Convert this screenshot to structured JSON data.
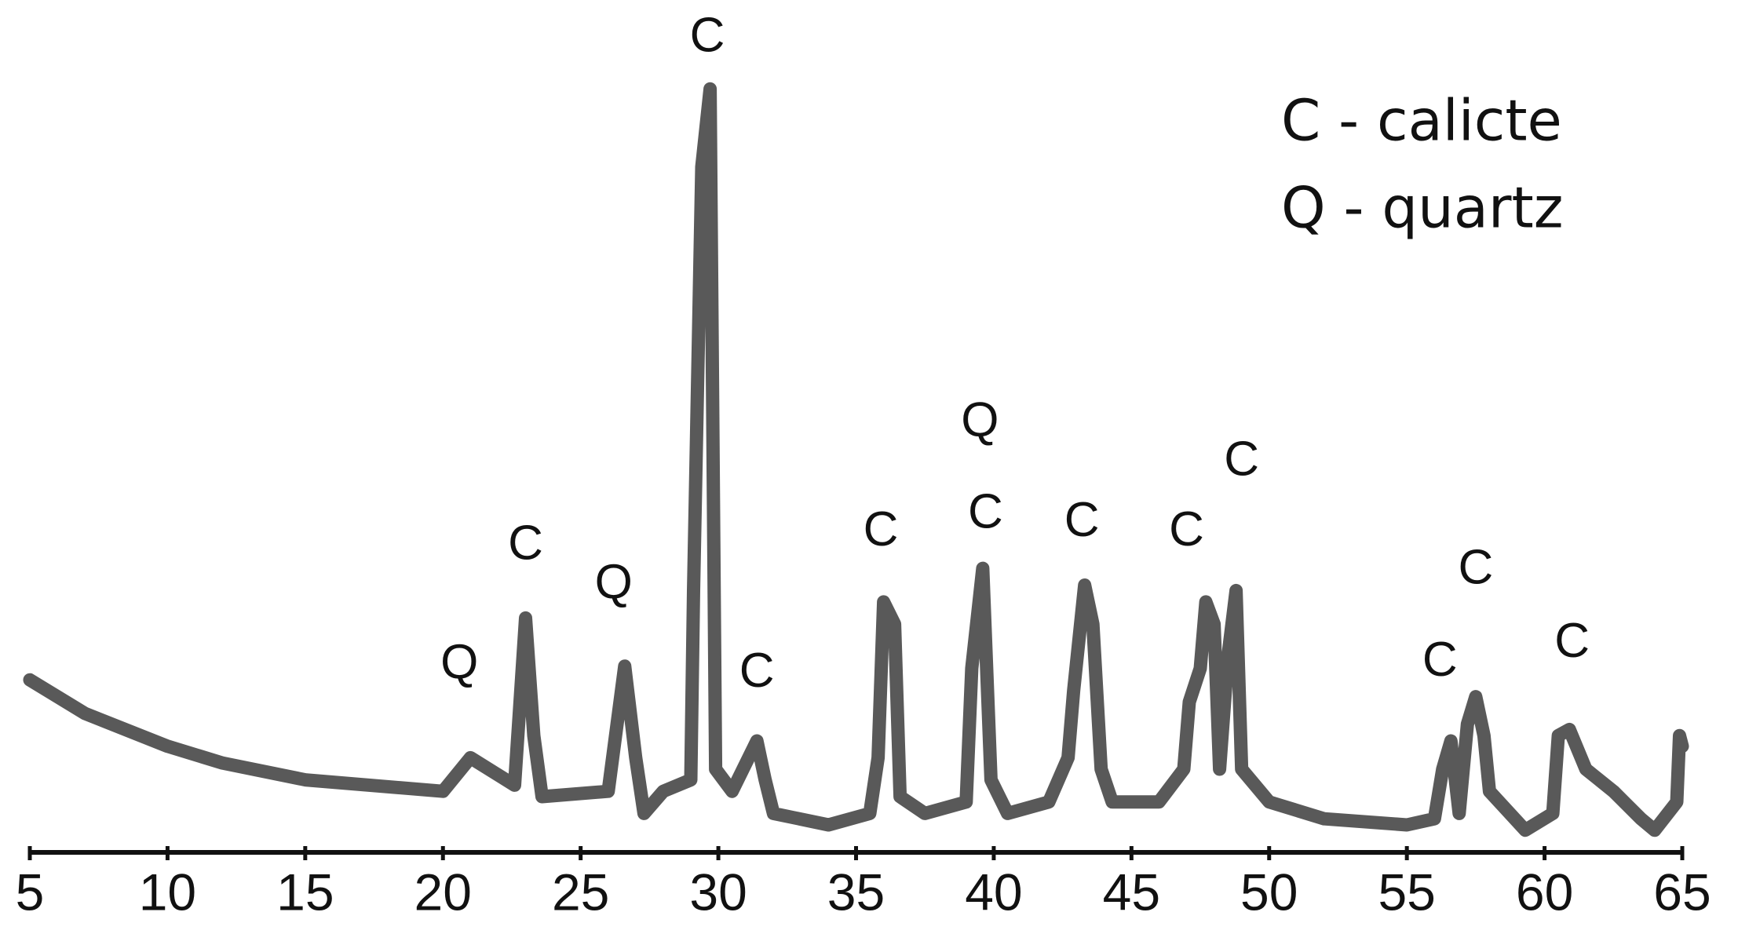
{
  "chart_data": {
    "type": "line",
    "x": [
      5,
      7,
      10,
      12,
      15,
      20,
      21,
      22.6,
      23,
      23.3,
      23.6,
      26,
      26.6,
      27,
      27.3,
      28,
      29,
      29.1,
      29.4,
      29.7,
      29.9,
      30.5,
      31.4,
      31.7,
      32,
      34,
      35.5,
      35.8,
      36,
      36.4,
      36.6,
      37.5,
      39,
      39.2,
      39.6,
      39.9,
      40.5,
      42,
      42.7,
      42.9,
      43.3,
      43.6,
      43.9,
      44.3,
      46,
      46.9,
      47.1,
      47.5,
      47.7,
      48,
      48.2,
      48.5,
      48.8,
      49,
      50,
      52,
      55,
      56,
      56.3,
      56.6,
      56.9,
      57.2,
      57.5,
      57.8,
      58,
      59.3,
      60.3,
      60.5,
      60.9,
      61.5,
      62.5,
      63.5,
      64,
      64.8,
      64.9,
      65
    ],
    "values": [
      22.6,
      18.2,
      13.9,
      11.7,
      9.5,
      8.0,
      12.4,
      8.8,
      30.7,
      15.3,
      7.3,
      8.0,
      24.4,
      12.4,
      5.1,
      8.0,
      9.5,
      34.3,
      89.8,
      100,
      10.9,
      8.0,
      14.6,
      9.5,
      5.1,
      3.6,
      5.1,
      12.4,
      32.8,
      29.9,
      7.3,
      5.1,
      6.6,
      24.1,
      37.2,
      9.5,
      5.1,
      6.6,
      12.4,
      21.2,
      35.0,
      29.9,
      10.9,
      6.6,
      6.6,
      10.9,
      19.7,
      24.1,
      32.8,
      29.9,
      10.9,
      25.5,
      34.3,
      10.9,
      6.6,
      4.4,
      3.6,
      4.4,
      10.9,
      14.6,
      5.1,
      16.8,
      20.4,
      15.3,
      8.0,
      2.9,
      5.1,
      15.3,
      16.1,
      10.9,
      8.0,
      4.4,
      2.9,
      6.6,
      15.3,
      13.9
    ],
    "color": "#595959",
    "xlim": [
      5,
      65
    ],
    "xticks": [
      5,
      10,
      15,
      20,
      25,
      30,
      35,
      40,
      45,
      50,
      55,
      60,
      65
    ],
    "ylim": [
      0,
      110
    ],
    "annotations": [
      {
        "text": "Q",
        "x": 20.6,
        "y": 24.5
      },
      {
        "text": "C",
        "x": 23,
        "y": 40.1
      },
      {
        "text": "Q",
        "x": 26.2,
        "y": 35
      },
      {
        "text": "C",
        "x": 29.6,
        "y": 106.6
      },
      {
        "text": "C",
        "x": 31.4,
        "y": 23.4
      },
      {
        "text": "C",
        "x": 35.9,
        "y": 41.9
      },
      {
        "text": "Q",
        "x": 39.5,
        "y": 56.2
      },
      {
        "text": "C",
        "x": 39.7,
        "y": 44.2
      },
      {
        "text": "C",
        "x": 43.2,
        "y": 43.1
      },
      {
        "text": "C",
        "x": 47,
        "y": 41.9
      },
      {
        "text": "C",
        "x": 49,
        "y": 51.1
      },
      {
        "text": "C",
        "x": 56.2,
        "y": 24.8
      },
      {
        "text": "C",
        "x": 57.5,
        "y": 36.9
      },
      {
        "text": "C",
        "x": 61,
        "y": 27.3
      }
    ],
    "legend_text": [
      "C - calicte",
      "Q - quartz"
    ]
  }
}
